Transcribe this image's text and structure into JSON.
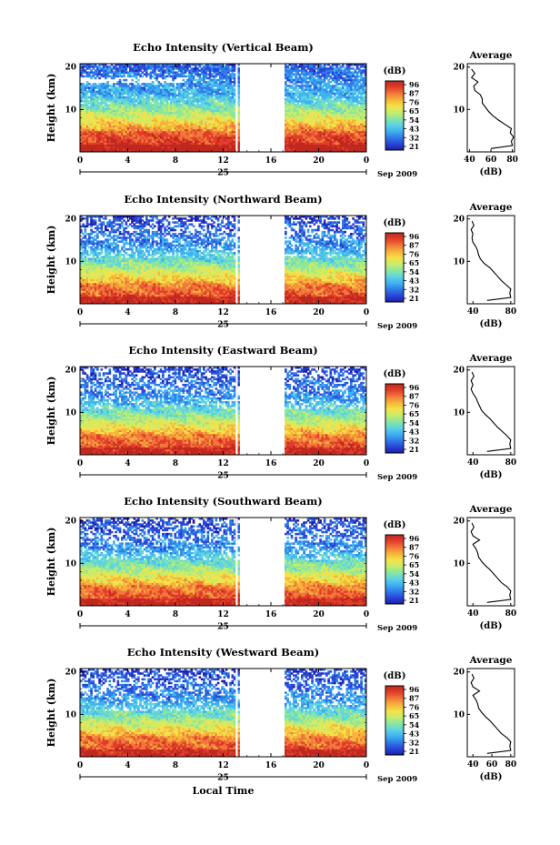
{
  "figure": {
    "date_label": "Sep 2009",
    "day_label": "25",
    "xlabel": "Local Time",
    "colorbar_unit": "(dB)",
    "colorbar_ticks": [
      "96",
      "87",
      "76",
      "65",
      "54",
      "43",
      "32",
      "21"
    ],
    "colorbar_colors": [
      "#1a1fa8",
      "#2a45d8",
      "#2f7de8",
      "#3fb2f2",
      "#5fd4e0",
      "#8ae6a0",
      "#c8ec6a",
      "#f4e24a",
      "#f7b43a",
      "#f0783a",
      "#e23d2a",
      "#c0281f"
    ]
  },
  "chart_data": [
    {
      "type": "heatmap",
      "title": "Echo Intensity (Vertical Beam)",
      "xlabel": "",
      "ylabel": "Height (km)",
      "xlim": [
        0,
        24
      ],
      "ylim": [
        0,
        20
      ],
      "xticks": [
        "0",
        "4",
        "8",
        "12",
        "16",
        "20",
        "0"
      ],
      "yticks": [
        "10",
        "20"
      ],
      "data_gap_hours": [
        13.4,
        17.2
      ],
      "profile": {
        "title": "Average",
        "xlabel": "(dB)",
        "xlim": [
          38,
          82
        ],
        "xticks": [
          "40",
          "60",
          "80"
        ],
        "yticks": [
          "10",
          "20"
        ],
        "height_km": [
          0.8,
          1.5,
          2.5,
          3.5,
          4.5,
          5.5,
          6.5,
          7.5,
          8.5,
          9.5,
          10.5,
          11.5,
          12.5,
          13.5,
          14.5,
          15.5,
          16.5,
          17.5,
          18.5,
          19.5
        ],
        "db": [
          60,
          80,
          79,
          81,
          78,
          79,
          73,
          67,
          62,
          58,
          55,
          52,
          52,
          50,
          45,
          44,
          48,
          42,
          45,
          42
        ]
      }
    },
    {
      "type": "heatmap",
      "title": "Echo Intensity (Northward Beam)",
      "xlabel": "",
      "ylabel": "Height (km)",
      "xlim": [
        0,
        24
      ],
      "ylim": [
        0,
        20
      ],
      "xticks": [
        "0",
        "4",
        "8",
        "12",
        "16",
        "20",
        "0"
      ],
      "yticks": [
        "10",
        "20"
      ],
      "data_gap_hours": [
        13.4,
        17.2
      ],
      "profile": {
        "title": "Average",
        "xlabel": "(dB)",
        "xlim": [
          34,
          84
        ],
        "xticks": [
          "40",
          "80"
        ],
        "yticks": [
          "10",
          "20"
        ],
        "height_km": [
          0.8,
          1.5,
          2.5,
          3.5,
          4.5,
          5.5,
          6.5,
          7.5,
          8.5,
          9.5,
          10.5,
          11.5,
          12.5,
          13.5,
          14.5,
          15.5,
          16.5,
          17.5,
          18.5,
          19.5
        ],
        "db": [
          55,
          80,
          79,
          80,
          75,
          70,
          66,
          62,
          58,
          52,
          48,
          46,
          45,
          43,
          40,
          39,
          40,
          38,
          41,
          39
        ]
      }
    },
    {
      "type": "heatmap",
      "title": "Echo Intensity (Eastward Beam)",
      "xlabel": "",
      "ylabel": "Height (km)",
      "xlim": [
        0,
        24
      ],
      "ylim": [
        0,
        20
      ],
      "xticks": [
        "0",
        "4",
        "8",
        "12",
        "16",
        "20",
        "0"
      ],
      "yticks": [
        "10",
        "20"
      ],
      "data_gap_hours": [
        13.4,
        17.2
      ],
      "profile": {
        "title": "Average",
        "xlabel": "(dB)",
        "xlim": [
          34,
          84
        ],
        "xticks": [
          "40",
          "80"
        ],
        "yticks": [
          "10",
          "20"
        ],
        "height_km": [
          0.8,
          1.5,
          2.5,
          3.5,
          4.5,
          5.5,
          6.5,
          7.5,
          8.5,
          9.5,
          10.5,
          11.5,
          12.5,
          13.5,
          14.5,
          15.5,
          16.5,
          17.5,
          18.5,
          19.5
        ],
        "db": [
          55,
          80,
          79,
          80,
          76,
          71,
          66,
          62,
          58,
          53,
          49,
          47,
          45,
          43,
          40,
          38,
          40,
          38,
          41,
          39
        ]
      }
    },
    {
      "type": "heatmap",
      "title": "Echo Intensity (Southward Beam)",
      "xlabel": "",
      "ylabel": "Height (km)",
      "xlim": [
        0,
        24
      ],
      "ylim": [
        0,
        20
      ],
      "xticks": [
        "0",
        "4",
        "8",
        "12",
        "16",
        "20",
        "0"
      ],
      "yticks": [
        "10",
        "20"
      ],
      "data_gap_hours": [
        13.4,
        17.2
      ],
      "profile": {
        "title": "Average",
        "xlabel": "(dB)",
        "xlim": [
          34,
          84
        ],
        "xticks": [
          "40",
          "80"
        ],
        "yticks": [
          "10",
          "20"
        ],
        "height_km": [
          0.8,
          1.5,
          2.5,
          3.5,
          4.5,
          5.5,
          6.5,
          7.5,
          8.5,
          9.5,
          10.5,
          11.5,
          12.5,
          13.5,
          14.5,
          15.5,
          16.5,
          17.5,
          18.5,
          19.5
        ],
        "db": [
          55,
          80,
          79,
          80,
          76,
          70,
          66,
          62,
          58,
          53,
          49,
          46,
          45,
          43,
          40,
          47,
          40,
          38,
          41,
          39
        ]
      }
    },
    {
      "type": "heatmap",
      "title": "Echo Intensity (Westward Beam)",
      "xlabel": "Local Time",
      "ylabel": "Height (km)",
      "xlim": [
        0,
        24
      ],
      "ylim": [
        0,
        20
      ],
      "xticks": [
        "0",
        "4",
        "8",
        "12",
        "16",
        "20",
        "0"
      ],
      "yticks": [
        "10",
        "20"
      ],
      "data_gap_hours": [
        13.4,
        17.2
      ],
      "profile": {
        "title": "Average",
        "xlabel": "(dB)",
        "xlim": [
          34,
          84
        ],
        "xticks": [
          "40",
          "60",
          "80"
        ],
        "yticks": [
          "10",
          "20"
        ],
        "height_km": [
          0.8,
          1.5,
          2.5,
          3.5,
          4.5,
          5.5,
          6.5,
          7.5,
          8.5,
          9.5,
          10.5,
          11.5,
          12.5,
          13.5,
          14.5,
          15.5,
          16.5,
          17.5,
          18.5,
          19.5
        ],
        "db": [
          55,
          80,
          79,
          80,
          76,
          70,
          66,
          62,
          58,
          53,
          49,
          46,
          45,
          43,
          40,
          47,
          40,
          38,
          41,
          39
        ]
      }
    }
  ]
}
